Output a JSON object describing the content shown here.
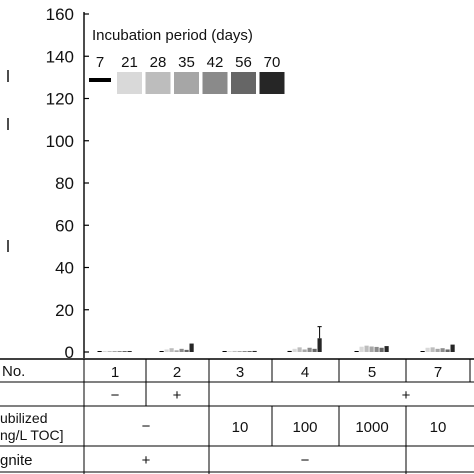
{
  "chart_data": {
    "type": "bar",
    "ylim": [
      0,
      160
    ],
    "y_ticks": [
      "0",
      "20",
      "40",
      "60",
      "80",
      "100",
      "120",
      "140",
      "160"
    ],
    "legend": {
      "title": "Incubation period (days)",
      "placement": "top",
      "entries": [
        {
          "label": "7",
          "color": "#000000",
          "style": "line"
        },
        {
          "label": "21",
          "color": "#d9d9d9",
          "style": "box"
        },
        {
          "label": "28",
          "color": "#bdbdbd",
          "style": "box"
        },
        {
          "label": "35",
          "color": "#a6a6a6",
          "style": "box"
        },
        {
          "label": "42",
          "color": "#8a8a8a",
          "style": "box"
        },
        {
          "label": "56",
          "color": "#666666",
          "style": "box"
        },
        {
          "label": "70",
          "color": "#262626",
          "style": "box"
        }
      ]
    },
    "categories": [
      "1",
      "2",
      "3",
      "4",
      "5",
      "7"
    ],
    "series": [
      {
        "name": "7",
        "values": [
          0.2,
          0.3,
          0.2,
          0.5,
          0.4,
          0.4
        ]
      },
      {
        "name": "21",
        "values": [
          0.3,
          1.2,
          0.4,
          1.5,
          2.5,
          2.0
        ]
      },
      {
        "name": "28",
        "values": [
          0.3,
          1.8,
          0.5,
          2.2,
          3.0,
          2.2
        ]
      },
      {
        "name": "35",
        "values": [
          0.3,
          0.8,
          0.4,
          1.2,
          2.6,
          1.5
        ]
      },
      {
        "name": "42",
        "values": [
          0.3,
          1.5,
          0.4,
          2.0,
          2.4,
          1.8
        ]
      },
      {
        "name": "56",
        "values": [
          0.3,
          1.0,
          0.3,
          1.5,
          2.0,
          1.2
        ]
      },
      {
        "name": "70",
        "values": [
          0.4,
          4.0,
          0.5,
          6.5,
          2.8,
          3.5
        ]
      }
    ],
    "error_bars": [
      {
        "category": "4",
        "series": "70",
        "high": 12
      }
    ]
  },
  "table": {
    "row1": {
      "label": "No.",
      "cells": [
        "1",
        "2",
        "3",
        "4",
        "5",
        "7"
      ]
    },
    "row2": {
      "cells": [
        "−",
        "+",
        "+"
      ]
    },
    "row3": {
      "label_line1": "ubilized",
      "label_line2": "ng/L TOC]",
      "cells": [
        "−",
        "10",
        "100",
        "1000",
        "10"
      ]
    },
    "row4": {
      "label": "gnite",
      "cells": [
        "+",
        "−"
      ]
    }
  }
}
